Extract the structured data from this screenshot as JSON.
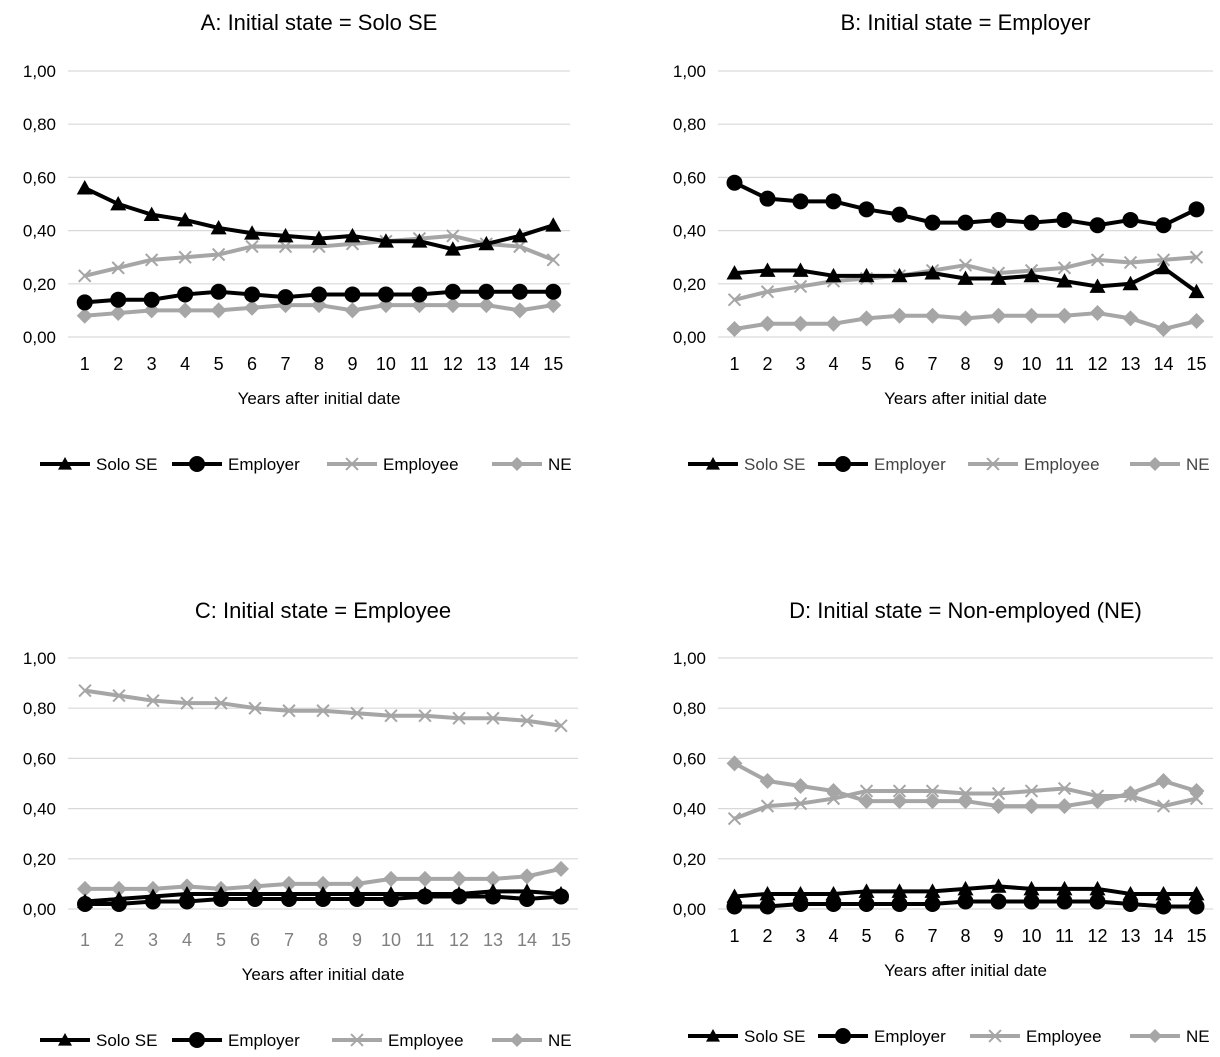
{
  "chart_data": [
    {
      "type": "line",
      "title": "A: Initial state = Solo SE",
      "xlabel": "Years after initial date",
      "ylabel": "",
      "categories": [
        "1",
        "2",
        "3",
        "4",
        "5",
        "6",
        "7",
        "8",
        "9",
        "10",
        "11",
        "12",
        "13",
        "14",
        "15"
      ],
      "ylim": [
        0,
        1
      ],
      "yticks": [
        "0,00",
        "0,20",
        "0,40",
        "0,60",
        "0,80",
        "1,00"
      ],
      "grid": "horizontal",
      "legend": "bottom",
      "series": [
        {
          "name": "Solo SE",
          "color": "#000000",
          "marker": "triangle",
          "values": [
            0.56,
            0.5,
            0.46,
            0.44,
            0.41,
            0.39,
            0.38,
            0.37,
            0.38,
            0.36,
            0.36,
            0.33,
            0.35,
            0.38,
            0.42
          ]
        },
        {
          "name": "Employer",
          "color": "#000000",
          "marker": "circle",
          "values": [
            0.13,
            0.14,
            0.14,
            0.16,
            0.17,
            0.16,
            0.15,
            0.16,
            0.16,
            0.16,
            0.16,
            0.17,
            0.17,
            0.17,
            0.17
          ]
        },
        {
          "name": "Employee",
          "color": "#a6a6a6",
          "marker": "x",
          "values": [
            0.23,
            0.26,
            0.29,
            0.3,
            0.31,
            0.34,
            0.34,
            0.34,
            0.35,
            0.36,
            0.37,
            0.38,
            0.35,
            0.34,
            0.29
          ]
        },
        {
          "name": "NE",
          "color": "#a6a6a6",
          "marker": "diamond",
          "values": [
            0.08,
            0.09,
            0.1,
            0.1,
            0.1,
            0.11,
            0.12,
            0.12,
            0.1,
            0.12,
            0.12,
            0.12,
            0.12,
            0.1,
            0.12
          ]
        }
      ]
    },
    {
      "type": "line",
      "title": "B: Initial state = Employer",
      "xlabel": "Years after initial date",
      "ylabel": "",
      "categories": [
        "1",
        "2",
        "3",
        "4",
        "5",
        "6",
        "7",
        "8",
        "9",
        "10",
        "11",
        "12",
        "13",
        "14",
        "15"
      ],
      "ylim": [
        0,
        1
      ],
      "yticks": [
        "0,00",
        "0,20",
        "0,40",
        "0,60",
        "0,80",
        "1,00"
      ],
      "grid": "horizontal",
      "legend": "bottom",
      "series": [
        {
          "name": "Solo SE",
          "color": "#000000",
          "marker": "triangle",
          "values": [
            0.24,
            0.25,
            0.25,
            0.23,
            0.23,
            0.23,
            0.24,
            0.22,
            0.22,
            0.23,
            0.21,
            0.19,
            0.2,
            0.26,
            0.17
          ]
        },
        {
          "name": "Employer",
          "color": "#000000",
          "marker": "circle",
          "values": [
            0.58,
            0.52,
            0.51,
            0.51,
            0.48,
            0.46,
            0.43,
            0.43,
            0.44,
            0.43,
            0.44,
            0.42,
            0.44,
            0.42,
            0.48
          ]
        },
        {
          "name": "Employee",
          "color": "#a6a6a6",
          "marker": "x",
          "values": [
            0.14,
            0.17,
            0.19,
            0.21,
            0.22,
            0.23,
            0.25,
            0.27,
            0.24,
            0.25,
            0.26,
            0.29,
            0.28,
            0.29,
            0.3
          ]
        },
        {
          "name": "NE",
          "color": "#a6a6a6",
          "marker": "diamond",
          "values": [
            0.03,
            0.05,
            0.05,
            0.05,
            0.07,
            0.08,
            0.08,
            0.07,
            0.08,
            0.08,
            0.08,
            0.09,
            0.07,
            0.03,
            0.06
          ]
        }
      ]
    },
    {
      "type": "line",
      "title": "C: Initial state = Employee",
      "xlabel": "Years after initial date",
      "ylabel": "",
      "categories": [
        "1",
        "2",
        "3",
        "4",
        "5",
        "6",
        "7",
        "8",
        "9",
        "10",
        "11",
        "12",
        "13",
        "14",
        "15"
      ],
      "ylim": [
        0,
        1
      ],
      "yticks": [
        "0,00",
        "0,20",
        "0,40",
        "0,60",
        "0,80",
        "1,00"
      ],
      "grid": "horizontal",
      "legend": "bottom",
      "series": [
        {
          "name": "Solo SE",
          "color": "#000000",
          "marker": "triangle",
          "values": [
            0.03,
            0.04,
            0.05,
            0.06,
            0.06,
            0.06,
            0.06,
            0.06,
            0.06,
            0.06,
            0.06,
            0.06,
            0.07,
            0.07,
            0.06
          ]
        },
        {
          "name": "Employer",
          "color": "#000000",
          "marker": "circle",
          "values": [
            0.02,
            0.02,
            0.03,
            0.03,
            0.04,
            0.04,
            0.04,
            0.04,
            0.04,
            0.04,
            0.05,
            0.05,
            0.05,
            0.04,
            0.05
          ]
        },
        {
          "name": "Employee",
          "color": "#a6a6a6",
          "marker": "x",
          "values": [
            0.87,
            0.85,
            0.83,
            0.82,
            0.82,
            0.8,
            0.79,
            0.79,
            0.78,
            0.77,
            0.77,
            0.76,
            0.76,
            0.75,
            0.73
          ]
        },
        {
          "name": "NE",
          "color": "#a6a6a6",
          "marker": "diamond",
          "values": [
            0.08,
            0.08,
            0.08,
            0.09,
            0.08,
            0.09,
            0.1,
            0.1,
            0.1,
            0.12,
            0.12,
            0.12,
            0.12,
            0.13,
            0.16
          ]
        }
      ]
    },
    {
      "type": "line",
      "title": "D: Initial state = Non-employed (NE)",
      "xlabel": "Years after initial date",
      "ylabel": "",
      "categories": [
        "1",
        "2",
        "3",
        "4",
        "5",
        "6",
        "7",
        "8",
        "9",
        "10",
        "11",
        "12",
        "13",
        "14",
        "15"
      ],
      "ylim": [
        0,
        1
      ],
      "yticks": [
        "0,00",
        "0,20",
        "0,40",
        "0,60",
        "0,80",
        "1,00"
      ],
      "grid": "horizontal",
      "legend": "bottom",
      "series": [
        {
          "name": "Solo SE",
          "color": "#000000",
          "marker": "triangle",
          "values": [
            0.05,
            0.06,
            0.06,
            0.06,
            0.07,
            0.07,
            0.07,
            0.08,
            0.09,
            0.08,
            0.08,
            0.08,
            0.06,
            0.06,
            0.06
          ]
        },
        {
          "name": "Employer",
          "color": "#000000",
          "marker": "circle",
          "values": [
            0.01,
            0.01,
            0.02,
            0.02,
            0.02,
            0.02,
            0.02,
            0.03,
            0.03,
            0.03,
            0.03,
            0.03,
            0.02,
            0.01,
            0.01
          ]
        },
        {
          "name": "Employee",
          "color": "#a6a6a6",
          "marker": "x",
          "values": [
            0.36,
            0.41,
            0.42,
            0.44,
            0.47,
            0.47,
            0.47,
            0.46,
            0.46,
            0.47,
            0.48,
            0.45,
            0.45,
            0.41,
            0.44
          ]
        },
        {
          "name": "NE",
          "color": "#a6a6a6",
          "marker": "diamond",
          "values": [
            0.58,
            0.51,
            0.49,
            0.47,
            0.43,
            0.43,
            0.43,
            0.43,
            0.41,
            0.41,
            0.41,
            0.43,
            0.46,
            0.51,
            0.47
          ]
        }
      ]
    }
  ]
}
